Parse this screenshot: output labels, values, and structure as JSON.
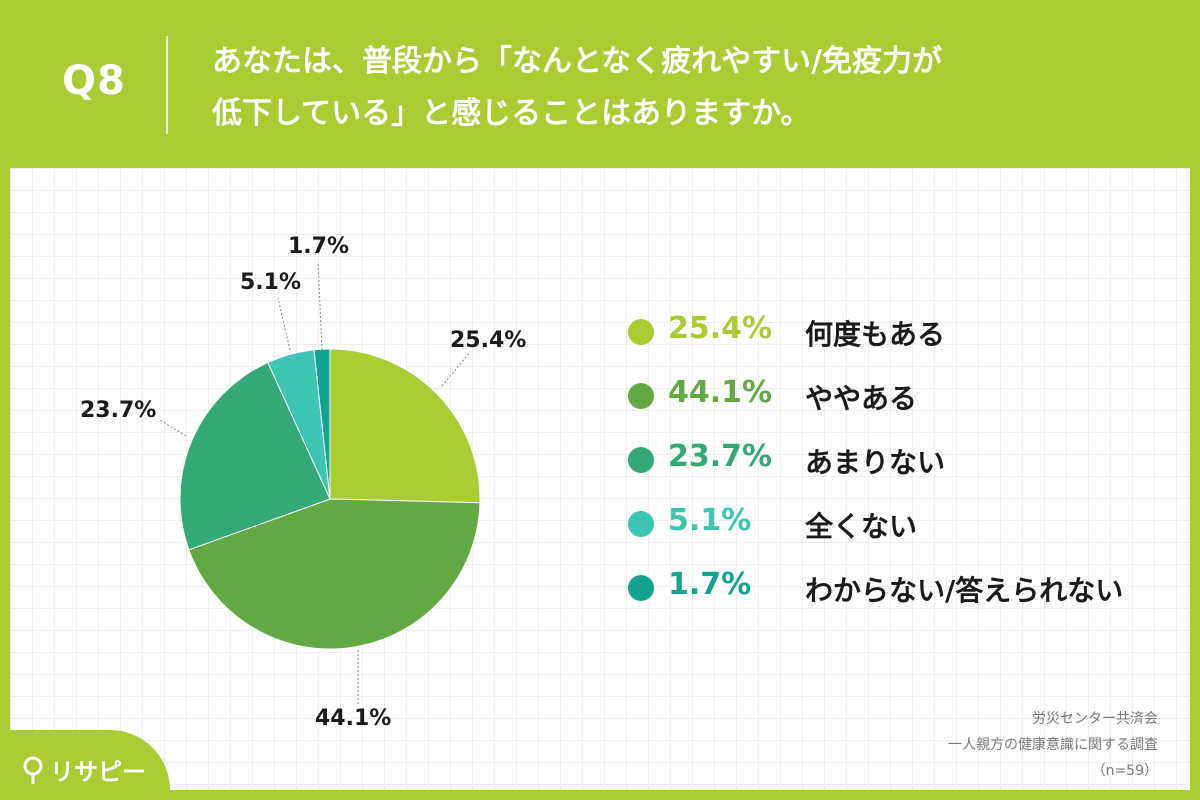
{
  "header": {
    "question_id": "Q8",
    "question_line1": "あなたは、普段から「なんとなく疲れやすい/免疫力が",
    "question_line2": "低下している」と感じることはありますか。"
  },
  "chart_data": {
    "type": "pie",
    "title": "",
    "slices": [
      {
        "label": "何度もある",
        "value": 25.4,
        "value_label": "25.4%",
        "color": "#a8cc31"
      },
      {
        "label": "ややある",
        "value": 44.1,
        "value_label": "44.1%",
        "color": "#62a843"
      },
      {
        "label": "あまりない",
        "value": 23.7,
        "value_label": "23.7%",
        "color": "#33aa76"
      },
      {
        "label": "全くない",
        "value": 5.1,
        "value_label": "5.1%",
        "color": "#3cc5b0"
      },
      {
        "label": "わからない/答えられない",
        "value": 1.7,
        "value_label": "1.7%",
        "color": "#12a391"
      }
    ],
    "start": "top, clockwise",
    "legend_position": "right"
  },
  "source": {
    "line1": "労災センター共済会",
    "line2": "一人親方の健康意識に関する調査",
    "line3": "（n=59）"
  },
  "brand": {
    "logo_text": "リサピー",
    "background_color": "#a8cc31"
  }
}
